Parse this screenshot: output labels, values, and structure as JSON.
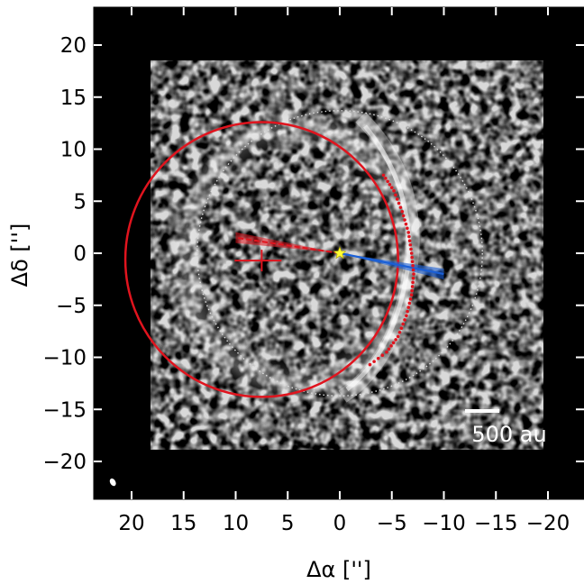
{
  "chart_data": {
    "type": "scatter",
    "xlabel": "Δα ['']",
    "ylabel": "Δδ ['']",
    "xlim": [
      23.5,
      -23.5
    ],
    "ylim": [
      -23.5,
      23.5
    ],
    "x_ticks": [
      20,
      15,
      10,
      5,
      0,
      -5,
      -10,
      -15,
      -20
    ],
    "x_tick_labels": [
      "20",
      "15",
      "10",
      "5",
      "0",
      "−5",
      "−10",
      "−15",
      "−20"
    ],
    "y_ticks": [
      20,
      15,
      10,
      5,
      0,
      -5,
      -10,
      -15,
      -20
    ],
    "y_tick_labels": [
      "20",
      "15",
      "10",
      "5",
      "0",
      "−5",
      "−10",
      "−15",
      "−20"
    ],
    "background": "grayscale intensity map",
    "scale_bar": {
      "label": "500 au",
      "length_arcsec": 3.3
    },
    "star": {
      "x": 0,
      "y": 0,
      "color": "#ffff33"
    },
    "red_ellipse": {
      "center": [
        7.5,
        -0.6
      ],
      "semi_major_x": 13.1,
      "semi_minor_y": 13.2,
      "color": "#e0141e"
    },
    "red_center_marker": {
      "x": 7.5,
      "y": -0.7
    },
    "dotted_circle": {
      "center": [
        0,
        0
      ],
      "radius": 13.7,
      "color": "#dddddd"
    },
    "red_ray": {
      "from": [
        0,
        0
      ],
      "to": [
        10,
        1.5
      ],
      "color": "#e0141e"
    },
    "blue_ray": {
      "from": [
        0,
        0
      ],
      "to": [
        -10,
        -2
      ],
      "color": "#1a5fd6"
    },
    "red_dotted_arc": {
      "points": [
        [
          -4.2,
          7.5
        ],
        [
          -5.2,
          6.0
        ],
        [
          -6.0,
          4.0
        ],
        [
          -6.6,
          2.0
        ],
        [
          -6.9,
          0.0
        ],
        [
          -7.1,
          -2.0
        ],
        [
          -6.9,
          -4.0
        ],
        [
          -6.4,
          -6.0
        ],
        [
          -5.6,
          -8.0
        ],
        [
          -4.5,
          -9.5
        ],
        [
          -2.5,
          -11.0
        ]
      ],
      "color": "#e0141e"
    },
    "beam": {
      "x": 21.8,
      "y": -22.0
    }
  }
}
